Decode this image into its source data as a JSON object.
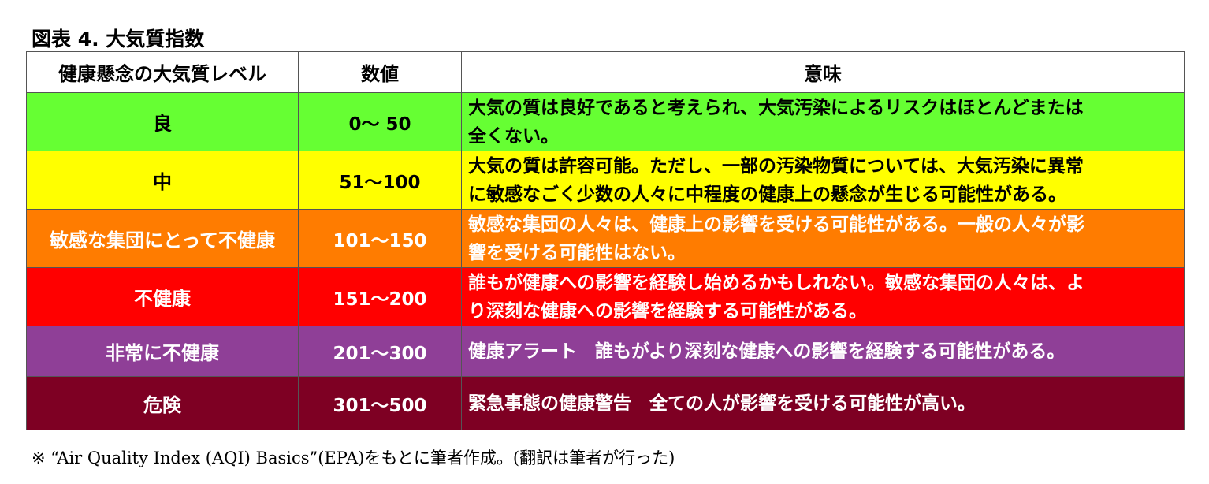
{
  "title": "図表 4.  大気質指数",
  "table": {
    "headers": [
      "健康懸念の大気質レベル",
      "数値",
      "意味"
    ],
    "rows": [
      {
        "level": "良",
        "range": "0～ 50",
        "lines": [
          "大気の質は良好であると考えられ、大気汚染によるリスクはほとんどまたは",
          "全くない。"
        ],
        "bg": "#66ff33",
        "color": "#000000"
      },
      {
        "level": "中",
        "range": "51～100",
        "lines": [
          "大気の質は許容可能。ただし、一部の汚染物質については、大気汚染に異常",
          "に敏感なごく少数の人々に中程度の健康上の懸念が生じる可能性がある。"
        ],
        "bg": "#ffff00",
        "color": "#000000"
      },
      {
        "level": "敏感な集団にとって不健康",
        "range": "101～150",
        "lines": [
          "敏感な集団の人々は、健康上の影響を受ける可能性がある。一般の人々が影",
          "響を受ける可能性はない。"
        ],
        "bg": "#ff7c00",
        "color": "#ffffff"
      },
      {
        "level": "不健康",
        "range": "151～200",
        "lines": [
          "誰もが健康への影響を経験し始めるかもしれない。敏感な集団の人々は、よ",
          "り深刻な健康への影響を経験する可能性がある。"
        ],
        "bg": "#ff0000",
        "color": "#ffffff"
      },
      {
        "level": "非常に不健康",
        "range": "201～300",
        "lines": [
          "健康アラート　誰もがより深刻な健康への影響を経験する可能性がある。"
        ],
        "bg": "#8f3f97",
        "color": "#ffffff"
      },
      {
        "level": "危険",
        "range": "301～500",
        "lines": [
          "緊急事態の健康警告　全ての人が影響を受ける可能性が高い。"
        ],
        "bg": "#7e0023",
        "color": "#ffffff"
      }
    ]
  },
  "footnote": "※ “Air Quality Index (AQI) Basics”(EPA)をもとに筆者作成。(翻訳は筆者が行った)"
}
